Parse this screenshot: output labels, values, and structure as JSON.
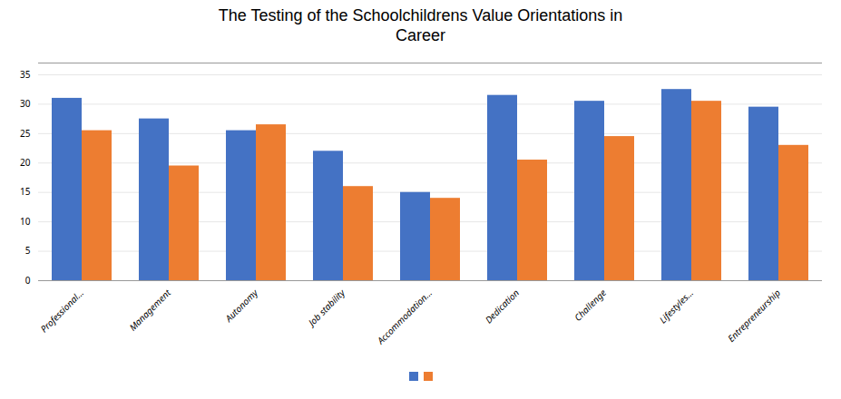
{
  "chart_data": {
    "type": "bar",
    "title": "The Testing of the Schoolchildrens Value Orientations in\nCareer",
    "categories": [
      "Professional...",
      "Management",
      "Autonomy",
      "Job stability",
      "Accommodation...",
      "Dedication",
      "Challenge",
      "Lifestyles...",
      "Entrepreneurship"
    ],
    "series": [
      {
        "color": "#4472C4",
        "values": [
          31,
          27.5,
          25.5,
          22,
          15,
          31.5,
          30.5,
          32.5,
          29.5
        ]
      },
      {
        "color": "#ED7D31",
        "values": [
          25.5,
          19.5,
          26.5,
          16,
          14,
          20.5,
          24.5,
          30.5,
          23
        ]
      }
    ],
    "ylim": [
      0,
      37
    ],
    "yticks": [
      0,
      5,
      10,
      15,
      20,
      25,
      30,
      35
    ],
    "grid": true,
    "legend": "bottom"
  }
}
